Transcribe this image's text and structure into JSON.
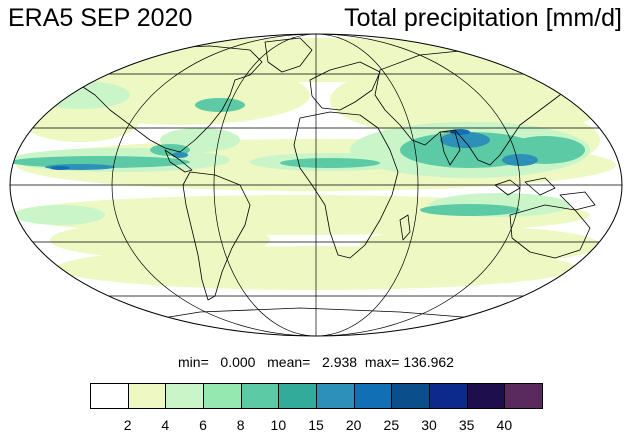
{
  "title_left": "ERA5 SEP 2020",
  "title_right": "Total precipitation [mm/d]",
  "stats": {
    "min_label": "min=",
    "min_value": "0.000",
    "mean_label": "mean=",
    "mean_value": "2.938",
    "max_label": "max=",
    "max_value": "136.962"
  },
  "colorbar": {
    "colors": [
      "#ffffff",
      "#edf8c2",
      "#c9f5c9",
      "#94e8b0",
      "#5ccaa5",
      "#33ab9a",
      "#2c90b8",
      "#1170b5",
      "#0b4e8c",
      "#0b2a8c",
      "#1e0e4e",
      "#5a2a5e"
    ],
    "labels": [
      "2",
      "4",
      "6",
      "8",
      "10",
      "15",
      "20",
      "25",
      "30",
      "35",
      "40"
    ]
  },
  "map": {
    "projection": "mollweide",
    "colors": {
      "ocean": "#ffffff",
      "light": "#edf8c2",
      "pale": "#c9f5c9",
      "medium": "#5ccaa5",
      "dark": "#2c90b8",
      "deep": "#1170b5"
    }
  }
}
